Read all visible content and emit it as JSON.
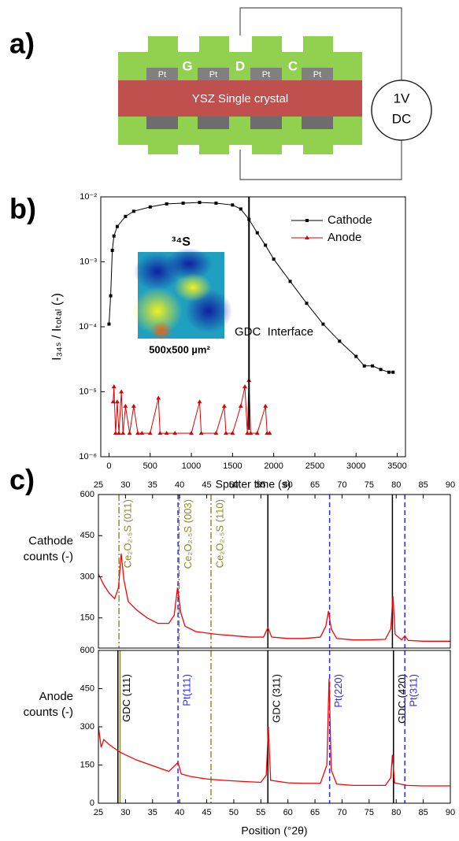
{
  "panel_labels": [
    "a)",
    "b)",
    "c)"
  ],
  "diagram": {
    "electrodes": [
      "Pt",
      "Pt",
      "Pt",
      "Pt"
    ],
    "letters": [
      "G",
      "D",
      "C"
    ],
    "crystal": "YSZ Single crystal",
    "source": [
      "1V",
      "DC"
    ]
  },
  "chart_data": [
    {
      "type": "line",
      "log_y": true,
      "x_label": "Sputter time (s)",
      "y_label": "I₃₄ₛ / Iₜₒₜₐₗ (-)",
      "xlim": [
        -100,
        3600
      ],
      "xticks": [
        0,
        500,
        1000,
        1500,
        2000,
        2500,
        3000,
        3500
      ],
      "xtick_side": "bottom",
      "ylim": [
        1e-06,
        0.01
      ],
      "yticks": [
        {
          "value": 1e-06,
          "label": "10⁻⁶"
        },
        {
          "value": 1e-05,
          "label": "10⁻⁵"
        },
        {
          "value": 0.0001,
          "label": "10⁻⁴"
        },
        {
          "value": 0.001,
          "label": "10⁻³"
        },
        {
          "value": 0.01,
          "label": "10⁻²"
        }
      ],
      "annotations": [
        "³⁴S",
        "500x500 µm²",
        "GDC  Interface"
      ],
      "vline": {
        "x": 1700,
        "y_range": [
          2.6e-06,
          0.01
        ]
      },
      "legend": "upper right",
      "series": [
        {
          "name": "Cathode",
          "color": "#000000",
          "marker": "square",
          "x": [
            0,
            20,
            40,
            60,
            100,
            200,
            300,
            500,
            700,
            900,
            1100,
            1300,
            1500,
            1600,
            1700,
            1800,
            1900,
            2000,
            2200,
            2400,
            2600,
            2800,
            3000,
            3100,
            3200,
            3300,
            3400,
            3450
          ],
          "values": [
            0.00011,
            0.0003,
            0.0015,
            0.0025,
            0.0035,
            0.005,
            0.006,
            0.007,
            0.0078,
            0.008,
            0.0082,
            0.008,
            0.0075,
            0.0065,
            0.0045,
            0.0028,
            0.0018,
            0.0011,
            0.0005,
            0.00023,
            0.00011,
            6e-05,
            3.5e-05,
            2.5e-05,
            2.5e-05,
            2.2e-05,
            2e-05,
            2e-05
          ]
        },
        {
          "name": "Anode",
          "color": "#e00000",
          "marker": "triangle",
          "x": [
            50,
            60,
            80,
            100,
            120,
            150,
            170,
            200,
            250,
            300,
            350,
            400,
            500,
            600,
            620,
            700,
            800,
            1000,
            1100,
            1120,
            1300,
            1400,
            1420,
            1500,
            1600,
            1650,
            1680,
            1700,
            1720,
            1800,
            1900,
            1920,
            1950
          ],
          "values": [
            7e-06,
            1.2e-05,
            2.3e-06,
            7e-06,
            2.3e-06,
            1e-05,
            2.3e-06,
            6e-06,
            2.3e-06,
            6e-06,
            2.3e-06,
            2.3e-06,
            2.3e-06,
            8e-06,
            2.3e-06,
            2.3e-06,
            2.3e-06,
            2.3e-06,
            7e-06,
            2.3e-06,
            2.3e-06,
            6e-06,
            2.3e-06,
            2.3e-06,
            6e-06,
            1.2e-05,
            2.3e-06,
            1.5e-05,
            2.3e-06,
            2.3e-06,
            6e-06,
            2.3e-06,
            2.3e-06
          ]
        }
      ]
    },
    {
      "type": "line",
      "y_label": [
        "Cathode",
        "counts (-)"
      ],
      "xlim": [
        25,
        90
      ],
      "xticks": [
        25,
        30,
        35,
        40,
        45,
        50,
        55,
        60,
        65,
        70,
        75,
        80,
        85,
        90
      ],
      "xtick_side": "top",
      "ylim": [
        40,
        600
      ],
      "yticks": [
        150,
        300,
        450,
        600
      ],
      "reference_lines": [
        {
          "x": 28.8,
          "color": "#8c8c30",
          "style": "dashdot",
          "label": "Ce₂O₂.₅S (011)"
        },
        {
          "x": 39.7,
          "color": "#2a2aff",
          "style": "dashed"
        },
        {
          "x": 39.9,
          "color": "#8c8c30",
          "style": "dashdot",
          "label": "Ce₂O₂.₅S (003)"
        },
        {
          "x": 45.8,
          "color": "#8c8c30",
          "style": "dashdot",
          "label": "Ce₂O₂.₅S (110)"
        },
        {
          "x": 56.3,
          "color": "#000000",
          "style": "solid"
        },
        {
          "x": 67.7,
          "color": "#2a2aff",
          "style": "dashed"
        },
        {
          "x": 79.3,
          "color": "#000000",
          "style": "solid"
        },
        {
          "x": 81.6,
          "color": "#2a2aff",
          "style": "dashed"
        }
      ],
      "series": [
        {
          "color": "#ff0000",
          "x": [
            25,
            26,
            27,
            28,
            28.7,
            29.2,
            29.7,
            30.5,
            32,
            34,
            36,
            38,
            39,
            39.6,
            40.2,
            41,
            43,
            45,
            47,
            50,
            53,
            55.5,
            56.3,
            57,
            60,
            63,
            66,
            67,
            67.5,
            68,
            69,
            72,
            75,
            78,
            79,
            79.4,
            79.8,
            81,
            81.6,
            82.2,
            85,
            88,
            90
          ],
          "values": [
            310,
            270,
            240,
            220,
            260,
            385,
            290,
            210,
            180,
            150,
            130,
            130,
            160,
            260,
            170,
            120,
            100,
            95,
            90,
            85,
            80,
            80,
            115,
            80,
            75,
            75,
            80,
            120,
            175,
            110,
            75,
            70,
            70,
            72,
            110,
            230,
            90,
            70,
            85,
            68,
            65,
            65,
            65
          ]
        }
      ]
    },
    {
      "type": "line",
      "x_label": "Position (°2θ)",
      "y_label": [
        "Anode",
        "counts (-)"
      ],
      "xlim": [
        25,
        90
      ],
      "xticks": [
        25,
        30,
        35,
        40,
        45,
        50,
        55,
        60,
        65,
        70,
        75,
        80,
        85,
        90
      ],
      "xtick_side": "bottom",
      "ylim": [
        0,
        600
      ],
      "yticks": [
        0,
        150,
        300,
        450,
        600
      ],
      "reference_lines": [
        {
          "x": 28.6,
          "color": "#000000",
          "style": "solid",
          "label": "GDC (111)"
        },
        {
          "x": 29.0,
          "color": "#8c8c30",
          "style": "solid"
        },
        {
          "x": 39.7,
          "color": "#2a2aff",
          "style": "dashed",
          "label": "Pt(111)"
        },
        {
          "x": 45.8,
          "color": "#8c8c30",
          "style": "dashdot"
        },
        {
          "x": 56.3,
          "color": "#000000",
          "style": "solid",
          "label": "GDC (311)"
        },
        {
          "x": 67.7,
          "color": "#2a2aff",
          "style": "dashed",
          "label": "Pt(220)"
        },
        {
          "x": 79.5,
          "color": "#000000",
          "style": "solid",
          "label": "GDC (420)"
        },
        {
          "x": 81.6,
          "color": "#2a2aff",
          "style": "dashed",
          "label": "Pt(311)"
        }
      ],
      "series": [
        {
          "color": "#ff0000",
          "x": [
            25,
            25.5,
            26,
            27,
            28,
            29,
            30,
            32,
            34,
            36,
            38,
            39.7,
            40.3,
            42,
            45,
            48,
            52,
            55,
            56,
            56.4,
            56.8,
            60,
            63,
            66,
            67.2,
            67.6,
            68,
            69,
            72,
            75,
            78,
            79,
            79.3,
            79.7,
            82,
            85,
            88,
            90
          ],
          "values": [
            300,
            220,
            250,
            230,
            215,
            200,
            190,
            170,
            155,
            140,
            125,
            160,
            115,
            105,
            95,
            90,
            85,
            82,
            110,
            300,
            90,
            80,
            78,
            78,
            150,
            490,
            130,
            75,
            70,
            70,
            70,
            100,
            190,
            80,
            70,
            68,
            68,
            68
          ]
        }
      ]
    }
  ]
}
